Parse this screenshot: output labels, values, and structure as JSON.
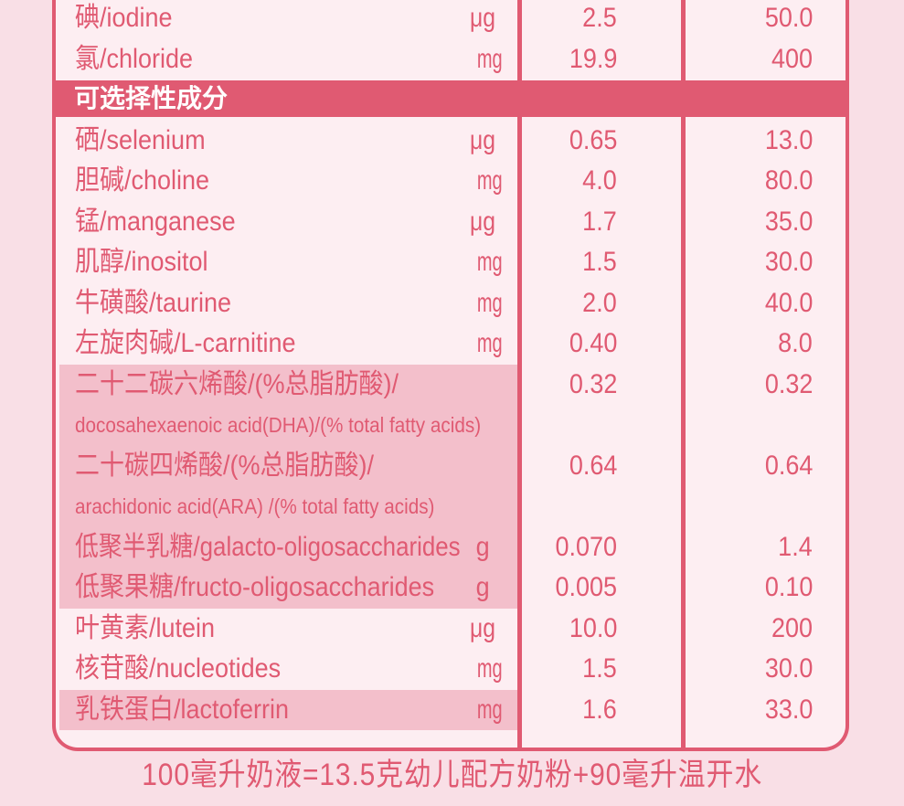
{
  "section_header": "可选择性成分",
  "rows_top": [
    {
      "name": "碘/iodine",
      "unit": "μg",
      "per100kj": "2.5",
      "per100g": "50.0"
    },
    {
      "name": "氯/chloride",
      "unit": "mg",
      "per100kj": "19.9",
      "per100g": "400"
    }
  ],
  "rows_optional": [
    {
      "name": "硒/selenium",
      "unit": "μg",
      "per100kj": "0.65",
      "per100g": "13.0"
    },
    {
      "name": "胆碱/choline",
      "unit": "mg",
      "per100kj": "4.0",
      "per100g": "80.0"
    },
    {
      "name": "锰/manganese",
      "unit": "μg",
      "per100kj": "1.7",
      "per100g": "35.0"
    },
    {
      "name": "肌醇/inositol",
      "unit": "mg",
      "per100kj": "1.5",
      "per100g": "30.0"
    },
    {
      "name": "牛磺酸/taurine",
      "unit": "mg",
      "per100kj": "2.0",
      "per100g": "40.0"
    },
    {
      "name": "左旋肉碱/L-carnitine",
      "unit": "mg",
      "per100kj": "0.40",
      "per100g": "8.0"
    },
    {
      "name": "二十二碳六烯酸/(%总脂肪酸)/",
      "subname": "docosahexaenoic acid(DHA)/(% total fatty acids)",
      "unit": "",
      "per100kj": "0.32",
      "per100g": "0.32",
      "highlight": true
    },
    {
      "name": "二十碳四烯酸/(%总脂肪酸)/",
      "subname": "arachidonic acid(ARA) /(% total fatty acids)",
      "unit": "",
      "per100kj": "0.64",
      "per100g": "0.64",
      "highlight": true
    },
    {
      "name": "低聚半乳糖/galacto-oligosaccharides",
      "unit": "g",
      "per100kj": "0.070",
      "per100g": "1.4",
      "highlight": true
    },
    {
      "name": "低聚果糖/fructo-oligosaccharides",
      "unit": "g",
      "per100kj": "0.005",
      "per100g": "0.10",
      "highlight": true
    },
    {
      "name": "叶黄素/lutein",
      "unit": "μg",
      "per100kj": "10.0",
      "per100g": "200"
    },
    {
      "name": "核苷酸/nucleotides",
      "unit": "mg",
      "per100kj": "1.5",
      "per100g": "30.0"
    },
    {
      "name": "乳铁蛋白/lactoferrin",
      "unit": "mg",
      "per100kj": "1.6",
      "per100g": "33.0",
      "highlight": true
    }
  ],
  "footer": "100毫升奶液=13.5克幼儿配方奶粉+90毫升温开水",
  "colors": {
    "accent": "#e05a72",
    "table_bg": "#fdeef2",
    "highlight": "#f3bfcb",
    "page_bg": "#f9dfe6"
  }
}
